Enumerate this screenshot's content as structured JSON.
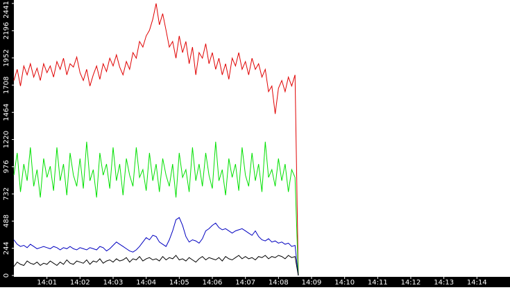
{
  "chart_data": {
    "type": "line",
    "xlim": [
      0,
      15
    ],
    "xticks": [
      {
        "value": 1,
        "label": "14:01"
      },
      {
        "value": 2,
        "label": "14:02"
      },
      {
        "value": 3,
        "label": "14:03"
      },
      {
        "value": 4,
        "label": "14:04"
      },
      {
        "value": 5,
        "label": "14:05"
      },
      {
        "value": 6,
        "label": "14:06"
      },
      {
        "value": 7,
        "label": "14:07"
      },
      {
        "value": 8,
        "label": "14:08"
      },
      {
        "value": 9,
        "label": "14:09"
      },
      {
        "value": 10,
        "label": "14:10"
      },
      {
        "value": 11,
        "label": "14:11"
      },
      {
        "value": 12,
        "label": "14:12"
      },
      {
        "value": 13,
        "label": "14:13"
      },
      {
        "value": 14,
        "label": "14:14"
      }
    ],
    "ylim": [
      0,
      2441
    ],
    "yticks": [
      0,
      244,
      488,
      732,
      976,
      1220,
      1464,
      1708,
      1952,
      2196,
      2441
    ],
    "x": [
      0,
      0.1,
      0.2,
      0.3,
      0.4,
      0.5,
      0.6,
      0.7,
      0.8,
      0.9,
      1,
      1.1,
      1.2,
      1.3,
      1.4,
      1.5,
      1.6,
      1.7,
      1.8,
      1.9,
      2,
      2.1,
      2.2,
      2.3,
      2.4,
      2.5,
      2.6,
      2.7,
      2.8,
      2.9,
      3,
      3.1,
      3.2,
      3.3,
      3.4,
      3.5,
      3.6,
      3.7,
      3.8,
      3.9,
      4,
      4.1,
      4.2,
      4.3,
      4.4,
      4.5,
      4.6,
      4.7,
      4.8,
      4.9,
      5,
      5.1,
      5.2,
      5.3,
      5.4,
      5.5,
      5.6,
      5.7,
      5.8,
      5.9,
      6,
      6.1,
      6.2,
      6.3,
      6.4,
      6.5,
      6.6,
      6.7,
      6.8,
      6.9,
      7,
      7.1,
      7.2,
      7.3,
      7.4,
      7.5,
      7.6,
      7.7,
      7.8,
      7.9,
      8,
      8.1,
      8.2,
      8.3,
      8.4,
      8.5,
      8.6
    ],
    "series": [
      {
        "color": "#e00000",
        "values": [
          1750,
          1850,
          1700,
          1880,
          1800,
          1900,
          1780,
          1860,
          1750,
          1900,
          1820,
          1880,
          1780,
          1920,
          1850,
          1950,
          1800,
          1900,
          1870,
          1960,
          1820,
          1750,
          1850,
          1700,
          1800,
          1880,
          1760,
          1900,
          1830,
          1950,
          1880,
          1980,
          1870,
          1800,
          1920,
          1850,
          2000,
          1950,
          2100,
          2050,
          2150,
          2200,
          2300,
          2441,
          2250,
          2350,
          2200,
          2050,
          2100,
          1950,
          2150,
          2000,
          2100,
          1900,
          2050,
          1800,
          2000,
          1950,
          2080,
          1900,
          2000,
          1850,
          1950,
          1800,
          1900,
          1760,
          1950,
          1880,
          2000,
          1850,
          1920,
          1800,
          1950,
          1850,
          1900,
          1780,
          1850,
          1650,
          1700,
          1450,
          1680,
          1750,
          1650,
          1780,
          1700,
          1800,
          0
        ]
      },
      {
        "color": "#00e000",
        "values": [
          900,
          1100,
          750,
          1000,
          850,
          1150,
          800,
          950,
          700,
          1050,
          880,
          980,
          760,
          1150,
          850,
          1000,
          720,
          1100,
          900,
          800,
          1050,
          780,
          1200,
          850,
          950,
          700,
          1100,
          900,
          1000,
          780,
          1150,
          850,
          1000,
          720,
          1050,
          900,
          800,
          1150,
          880,
          950,
          760,
          1100,
          850,
          1000,
          750,
          1050,
          900,
          800,
          1000,
          700,
          1100,
          880,
          950,
          750,
          1150,
          850,
          1000,
          800,
          1100,
          900,
          780,
          1200,
          850,
          950,
          720,
          1050,
          880,
          1000,
          760,
          1150,
          900,
          800,
          1100,
          850,
          1000,
          750,
          1200,
          880,
          950,
          800,
          1050,
          850,
          1000,
          750,
          950,
          880,
          0
        ]
      },
      {
        "color": "#0000c0",
        "values": [
          320,
          280,
          260,
          270,
          250,
          280,
          260,
          240,
          250,
          260,
          250,
          240,
          260,
          250,
          230,
          250,
          240,
          260,
          240,
          230,
          250,
          240,
          230,
          250,
          240,
          230,
          260,
          250,
          220,
          240,
          270,
          300,
          280,
          260,
          240,
          220,
          210,
          230,
          260,
          300,
          340,
          320,
          360,
          350,
          300,
          280,
          260,
          320,
          400,
          500,
          520,
          450,
          350,
          300,
          320,
          310,
          290,
          330,
          400,
          420,
          450,
          470,
          430,
          410,
          420,
          400,
          380,
          400,
          410,
          420,
          400,
          380,
          360,
          400,
          350,
          320,
          310,
          330,
          300,
          310,
          290,
          300,
          280,
          290,
          260,
          270,
          0
        ]
      },
      {
        "color": "#000000",
        "values": [
          80,
          120,
          100,
          90,
          130,
          110,
          100,
          120,
          90,
          110,
          100,
          130,
          110,
          90,
          120,
          100,
          140,
          110,
          100,
          130,
          120,
          110,
          140,
          100,
          130,
          120,
          150,
          110,
          130,
          140,
          120,
          150,
          130,
          140,
          160,
          120,
          150,
          140,
          170,
          130,
          150,
          160,
          140,
          150,
          130,
          170,
          140,
          160,
          150,
          180,
          140,
          150,
          130,
          160,
          140,
          120,
          150,
          170,
          140,
          160,
          150,
          140,
          160,
          130,
          170,
          150,
          140,
          160,
          180,
          150,
          170,
          150,
          160,
          140,
          170,
          160,
          180,
          150,
          170,
          160,
          180,
          170,
          150,
          180,
          160,
          170,
          0
        ]
      }
    ]
  }
}
